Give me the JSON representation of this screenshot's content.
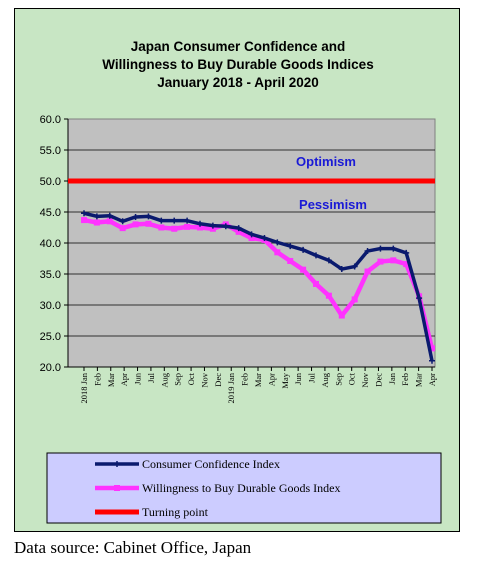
{
  "chart_data": {
    "type": "line",
    "title_lines": [
      "Japan Consumer Confidence and",
      "Willingness to Buy Durable Goods Indices",
      "January 2018 - April 2020"
    ],
    "ylim": [
      20,
      60
    ],
    "y_ticks": [
      "60.0",
      "55.0",
      "50.0",
      "45.0",
      "40.0",
      "35.0",
      "30.0",
      "25.0",
      "20.0"
    ],
    "x_tick_labels": [
      "2018 Jan",
      "Feb",
      "Mar",
      "Apr",
      "May",
      "Jun",
      "Jul",
      "Aug",
      "Sep",
      "Oct",
      "Nov",
      "Dec",
      "2019 Jan",
      "Feb",
      "Mar",
      "Apr",
      "May",
      "Jun",
      "Jul",
      "Aug",
      "Sep",
      "Oct",
      "Nov",
      "Dec",
      "2020 Jan",
      "Feb",
      "Mar",
      "Apr"
    ],
    "x_tick_show": [
      "2018 Jan",
      "Feb",
      "Mar",
      "Apr",
      "Jun",
      "Jul",
      "Aug",
      "Sep",
      "Oct",
      "Nov",
      "Dec",
      "2019 Jan",
      "Feb",
      "Mar",
      "Apr",
      "May",
      "Jun",
      "Jul",
      "Aug",
      "Sep",
      "Oct",
      "Nov",
      "Dec",
      "Jan",
      "Feb",
      "Mar",
      "Apr"
    ],
    "series": [
      {
        "name": "Consumer Confidence Index",
        "color": "#0a1a6e",
        "values": [
          44.8,
          44.3,
          44.4,
          43.5,
          44.2,
          44.3,
          43.6,
          43.6,
          43.6,
          43.1,
          42.8,
          42.7,
          42.4,
          41.4,
          40.8,
          40.1,
          39.5,
          38.9,
          38.0,
          37.2,
          35.8,
          36.2,
          38.7,
          39.1,
          39.1,
          38.4,
          31.1,
          21.0
        ]
      },
      {
        "name": "Willingness to Buy Durable Goods Index",
        "color": "#ff33ff",
        "values": [
          43.7,
          43.3,
          43.5,
          42.4,
          43.0,
          43.1,
          42.5,
          42.3,
          42.6,
          42.5,
          42.3,
          43.0,
          41.8,
          40.8,
          40.5,
          38.5,
          37.1,
          35.7,
          33.4,
          31.5,
          28.3,
          30.9,
          35.4,
          37.0,
          37.2,
          36.6,
          31.4,
          23.0
        ]
      },
      {
        "name": "Turning point",
        "color": "#ff0000",
        "values": [
          50,
          50
        ]
      }
    ],
    "region_labels": {
      "above": "Optimism",
      "below": "Pessimism"
    },
    "grid": true,
    "legend_placement": "bottom"
  },
  "source_note": "Data source: Cabinet Office, Japan",
  "colors": {
    "frame_bg": "#c8e6c4",
    "plot_bg": "#c0c0c0",
    "legend_bg": "#ccccff"
  }
}
